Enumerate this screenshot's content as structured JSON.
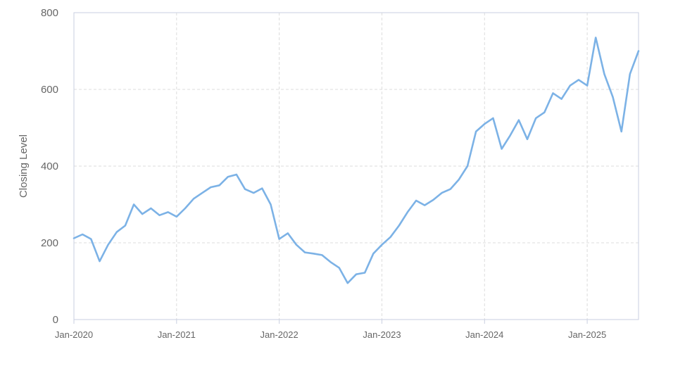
{
  "chart_data": {
    "type": "line",
    "title": "",
    "xlabel": "",
    "ylabel": "Closing Level",
    "ylim": [
      0,
      800
    ],
    "xlim": [
      "2020-01",
      "2025-07"
    ],
    "grid": true,
    "legend": "none",
    "y_ticks": [
      {
        "value": 0,
        "label": "0"
      },
      {
        "value": 200,
        "label": "200"
      },
      {
        "value": 400,
        "label": "400"
      },
      {
        "value": 600,
        "label": "600"
      },
      {
        "value": 800,
        "label": "800"
      }
    ],
    "x_ticks": [
      {
        "date": "2020-01",
        "label": "Jan-2020"
      },
      {
        "date": "2021-01",
        "label": "Jan-2021"
      },
      {
        "date": "2022-01",
        "label": "Jan-2022"
      },
      {
        "date": "2023-01",
        "label": "Jan-2023"
      },
      {
        "date": "2024-01",
        "label": "Jan-2024"
      },
      {
        "date": "2025-01",
        "label": "Jan-2025"
      }
    ],
    "series": [
      {
        "color": "#7cb2e6",
        "x": [
          "2020-01",
          "2020-02",
          "2020-03",
          "2020-04",
          "2020-05",
          "2020-06",
          "2020-07",
          "2020-08",
          "2020-09",
          "2020-10",
          "2020-11",
          "2020-12",
          "2021-01",
          "2021-02",
          "2021-03",
          "2021-04",
          "2021-05",
          "2021-06",
          "2021-07",
          "2021-08",
          "2021-09",
          "2021-10",
          "2021-11",
          "2021-12",
          "2022-01",
          "2022-02",
          "2022-03",
          "2022-04",
          "2022-05",
          "2022-06",
          "2022-07",
          "2022-08",
          "2022-09",
          "2022-10",
          "2022-11",
          "2022-12",
          "2023-01",
          "2023-02",
          "2023-03",
          "2023-04",
          "2023-05",
          "2023-06",
          "2023-07",
          "2023-08",
          "2023-09",
          "2023-10",
          "2023-11",
          "2023-12",
          "2024-01",
          "2024-02",
          "2024-03",
          "2024-04",
          "2024-05",
          "2024-06",
          "2024-07",
          "2024-08",
          "2024-09",
          "2024-10",
          "2024-11",
          "2024-12",
          "2025-01",
          "2025-02",
          "2025-03",
          "2025-04",
          "2025-05",
          "2025-06",
          "2025-07"
        ],
        "values": [
          212,
          222,
          210,
          152,
          195,
          228,
          245,
          300,
          275,
          290,
          272,
          280,
          268,
          290,
          315,
          330,
          345,
          350,
          372,
          378,
          340,
          330,
          342,
          300,
          210,
          225,
          195,
          175,
          172,
          168,
          150,
          135,
          95,
          118,
          122,
          172,
          195,
          215,
          245,
          280,
          310,
          298,
          312,
          330,
          340,
          365,
          400,
          490,
          510,
          525,
          445,
          480,
          520,
          470,
          525,
          540,
          590,
          575,
          610,
          625,
          610,
          735,
          640,
          580,
          490,
          640,
          700
        ]
      }
    ]
  }
}
